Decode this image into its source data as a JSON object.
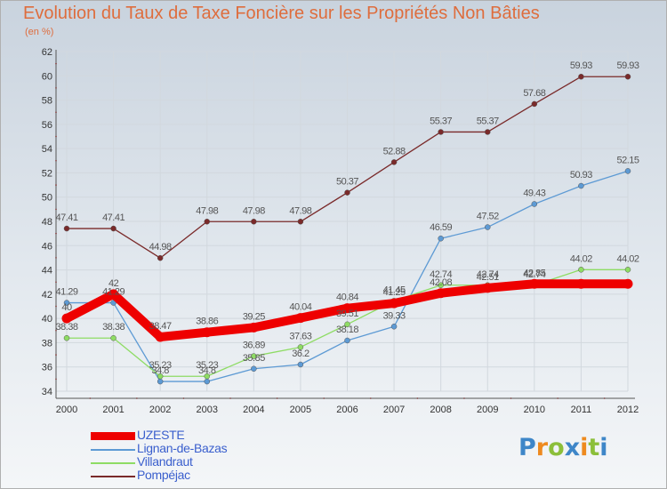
{
  "title": "Evolution du Taux de Taxe Foncière sur les Propriétés Non Bâties",
  "subtitle": "(en %)",
  "logo": {
    "text": "Proxiti",
    "colors": [
      "#3e86c8",
      "#ee8a1f",
      "#8cbf3a",
      "#3e86c8",
      "#ee8a1f",
      "#8cbf3a",
      "#3e86c8"
    ]
  },
  "chart_data": {
    "type": "line",
    "title": "Evolution du Taux de Taxe Foncière sur les Propriétés Non Bâties",
    "ylabel": "(en %)",
    "xlabel": "",
    "ylim": [
      34,
      62
    ],
    "yticks": [
      34,
      36,
      38,
      40,
      42,
      44,
      46,
      48,
      50,
      52,
      54,
      56,
      58,
      60,
      62
    ],
    "grid": true,
    "legend_position": "bottom-left",
    "x": [
      "2000",
      "2001",
      "2002",
      "2003",
      "2004",
      "2005",
      "2006",
      "2007",
      "2008",
      "2009",
      "2010",
      "2011",
      "2012"
    ],
    "series": [
      {
        "name": "UZESTE",
        "color": "#ee0000",
        "values": [
          40,
          42,
          38.47,
          38.86,
          39.25,
          40.04,
          40.84,
          41.25,
          42.08,
          42.51,
          42.85,
          42.85,
          42.85
        ],
        "labels": [
          "40",
          "42",
          "38.47",
          "38.86",
          "39.25",
          "40.04",
          "40.84",
          "41.25",
          "42.08",
          "42.51",
          "42.85",
          "",
          ""
        ]
      },
      {
        "name": "Lignan-de-Bazas",
        "color": "#5d9ad4",
        "values": [
          41.29,
          41.29,
          34.8,
          34.8,
          35.85,
          36.2,
          38.18,
          39.33,
          46.59,
          47.52,
          49.43,
          50.93,
          52.15
        ],
        "labels": [
          "41.29",
          "41.29",
          "34.8",
          "34.8",
          "35.85",
          "36.2",
          "38.18",
          "39.33",
          "46.59",
          "47.52",
          "49.43",
          "50.93",
          "52.15"
        ]
      },
      {
        "name": "Villandraut",
        "color": "#8edc64",
        "values": [
          38.38,
          38.38,
          35.23,
          35.23,
          36.89,
          37.63,
          39.51,
          41.45,
          42.74,
          42.74,
          42.74,
          44.02,
          44.02
        ],
        "labels": [
          "38.38",
          "38.38",
          "35.23",
          "35.23",
          "36.89",
          "37.63",
          "39.51",
          "41.45",
          "42.74",
          "42.74",
          "42.74",
          "44.02",
          "44.02"
        ]
      },
      {
        "name": "Pompéjac",
        "color": "#7a2a2a",
        "values": [
          47.41,
          47.41,
          44.98,
          47.98,
          47.98,
          47.98,
          50.37,
          52.88,
          55.37,
          55.37,
          57.68,
          59.93,
          59.93
        ],
        "labels": [
          "47.41",
          "47.41",
          "44.98",
          "47.98",
          "47.98",
          "47.98",
          "50.37",
          "52.88",
          "55.37",
          "55.37",
          "57.68",
          "59.93",
          "59.93"
        ]
      }
    ]
  }
}
